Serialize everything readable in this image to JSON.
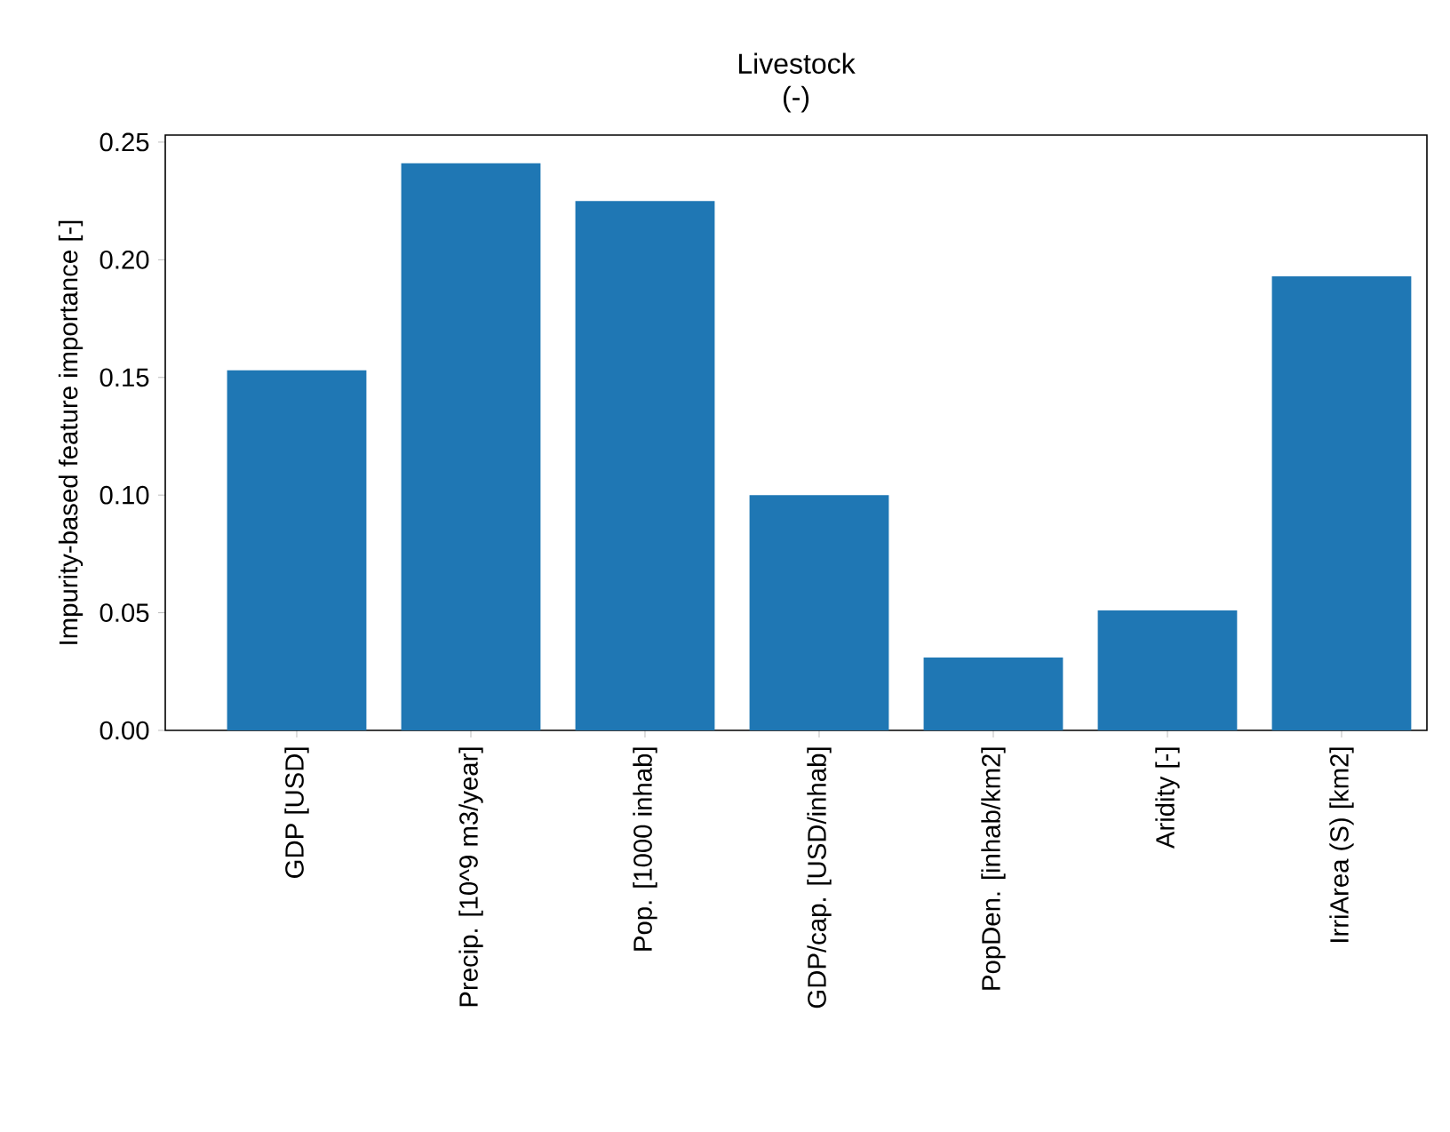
{
  "chart_data": {
    "type": "bar",
    "title": "Livestock",
    "subtitle": "(-)",
    "ylabel": "Impurity-based feature importance [-]",
    "categories": [
      "GDP [USD]",
      "Precip. [10^9 m3/year]",
      "Pop. [1000 inhab]",
      "GDP/cap. [USD/inhab]",
      "PopDen. [inhab/km2]",
      "Aridity [-]",
      "IrriArea (S) [km2]"
    ],
    "values": [
      0.153,
      0.241,
      0.225,
      0.1,
      0.031,
      0.051,
      0.193
    ],
    "color": "#1f77b4",
    "ylim": [
      0,
      0.253
    ],
    "yticks": [
      {
        "value": 0,
        "label": "0.00"
      },
      {
        "value": 0.05,
        "label": "0.05"
      },
      {
        "value": 0.1,
        "label": "0.10"
      },
      {
        "value": 0.15,
        "label": "0.15"
      },
      {
        "value": 0.2,
        "label": "0.20"
      },
      {
        "value": 0.25,
        "label": "0.25"
      }
    ]
  }
}
